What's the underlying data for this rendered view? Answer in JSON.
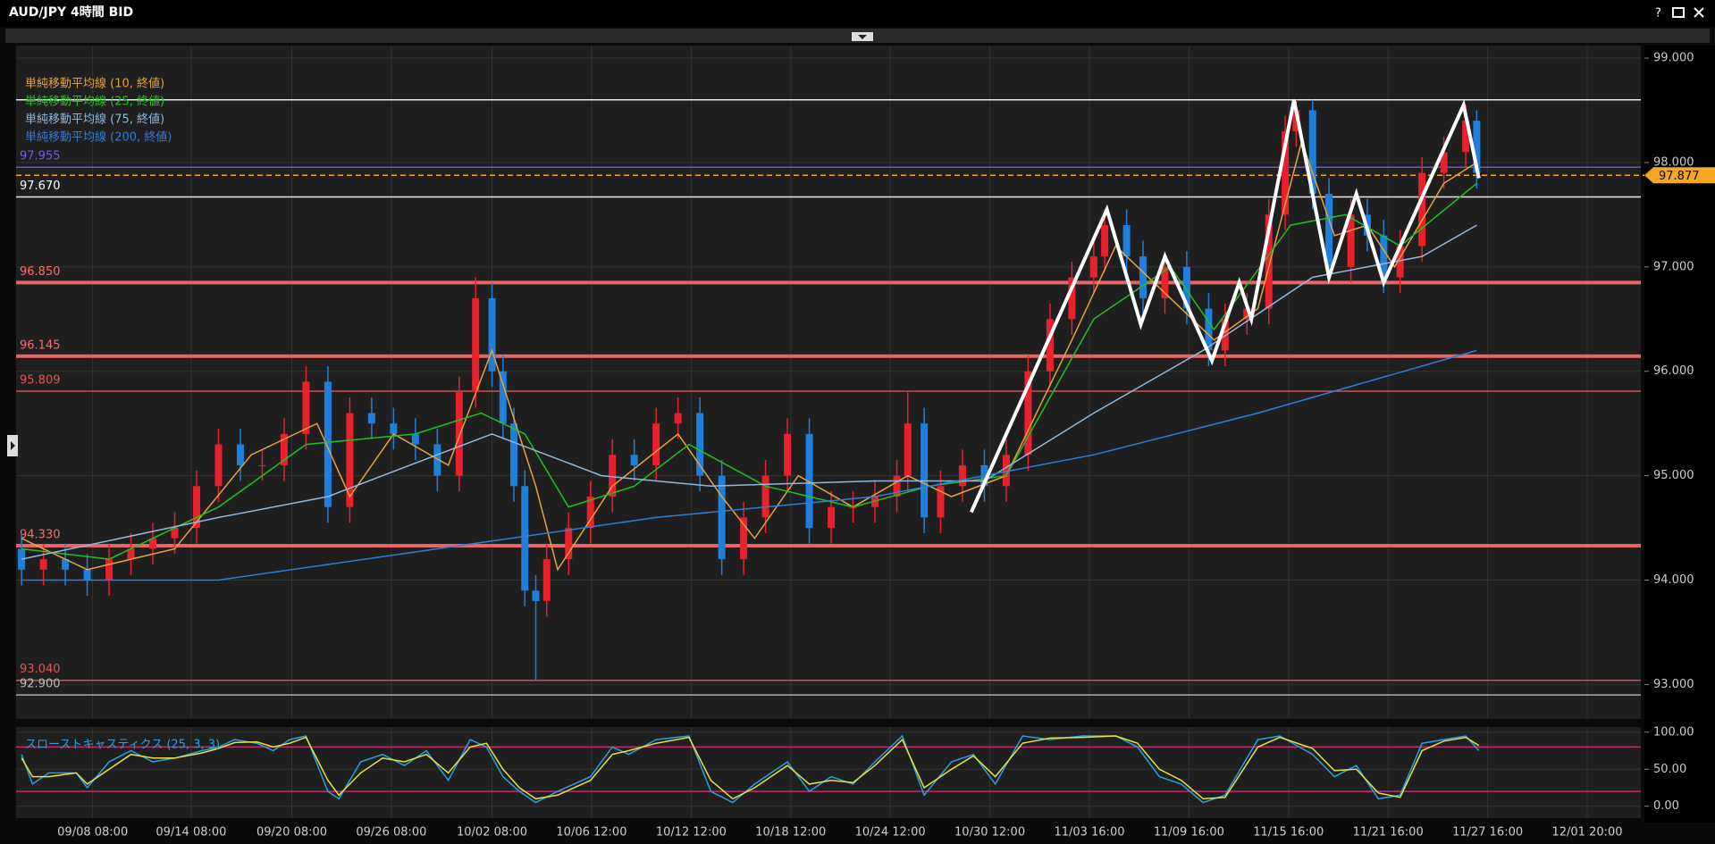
{
  "chart_data": [
    {
      "type": "candlestick",
      "title": "AUD/JPY 4時間 BID",
      "xlim": [
        15,
        1500
      ],
      "xticks": [
        {
          "value": 85,
          "label": "09/08 08:00"
        },
        {
          "value": 175,
          "label": "09/14 08:00"
        },
        {
          "value": 267,
          "label": "09/20 08:00"
        },
        {
          "value": 358,
          "label": "09/26 08:00"
        },
        {
          "value": 450,
          "label": "10/02 08:00"
        },
        {
          "value": 541,
          "label": "10/06 12:00"
        },
        {
          "value": 632,
          "label": "10/12 12:00"
        },
        {
          "value": 723,
          "label": "10/18 12:00"
        },
        {
          "value": 814,
          "label": "10/24 12:00"
        },
        {
          "value": 905,
          "label": "10/30 12:00"
        },
        {
          "value": 996,
          "label": "11/03 16:00"
        },
        {
          "value": 1087,
          "label": "11/09 16:00"
        },
        {
          "value": 1178,
          "label": "11/15 16:00"
        },
        {
          "value": 1269,
          "label": "11/21 16:00"
        },
        {
          "value": 1360,
          "label": "11/27 16:00"
        },
        {
          "value": 1451,
          "label": "12/01 20:00"
        }
      ],
      "ylim": [
        92.67,
        99.12
      ],
      "yticks": [
        {
          "value": 93,
          "label": "93.000"
        },
        {
          "value": 94,
          "label": "94.000"
        },
        {
          "value": 95,
          "label": "95.000"
        },
        {
          "value": 96,
          "label": "96.000"
        },
        {
          "value": 97,
          "label": "97.000"
        },
        {
          "value": 98,
          "label": "98.000"
        },
        {
          "value": 99,
          "label": "99.000"
        }
      ],
      "grid": true,
      "up_color": "#e8212b",
      "down_color": "#1f80dc",
      "x": [
        20,
        40,
        60,
        80,
        100,
        120,
        140,
        160,
        180,
        200,
        220,
        240,
        260,
        280,
        300,
        320,
        340,
        360,
        380,
        400,
        420,
        435,
        450,
        460,
        470,
        480,
        490,
        500,
        520,
        540,
        560,
        580,
        600,
        620,
        640,
        660,
        680,
        700,
        720,
        740,
        760,
        780,
        800,
        820,
        830,
        845,
        860,
        880,
        900,
        920,
        940,
        960,
        980,
        1000,
        1010,
        1030,
        1045,
        1065,
        1085,
        1105,
        1120,
        1140,
        1160,
        1175,
        1185,
        1200,
        1215,
        1235,
        1250,
        1265,
        1280,
        1300,
        1320,
        1340,
        1350
      ],
      "open": [
        94.3,
        94.1,
        94.2,
        94.1,
        94.0,
        94.2,
        94.3,
        94.4,
        94.5,
        94.9,
        95.3,
        95.1,
        95.1,
        95.4,
        95.9,
        94.7,
        95.6,
        95.5,
        95.4,
        95.3,
        95.0,
        95.8,
        96.7,
        96.0,
        95.5,
        94.9,
        93.9,
        93.8,
        94.2,
        94.5,
        94.8,
        95.2,
        95.1,
        95.5,
        95.6,
        95.0,
        94.2,
        94.6,
        95.0,
        95.4,
        94.5,
        94.7,
        94.7,
        94.8,
        95.0,
        95.5,
        94.6,
        94.9,
        95.1,
        94.9,
        95.2,
        96.0,
        96.5,
        96.9,
        97.1,
        97.4,
        97.1,
        96.7,
        97.0,
        96.6,
        96.2,
        96.5,
        96.6,
        97.5,
        98.3,
        98.5,
        97.7,
        97.0,
        97.5,
        97.3,
        96.9,
        97.2,
        97.9,
        98.1,
        98.4
      ],
      "high": [
        94.45,
        94.35,
        94.35,
        94.25,
        94.35,
        94.45,
        94.55,
        94.65,
        95.05,
        95.45,
        95.45,
        95.25,
        95.55,
        96.05,
        96.05,
        95.75,
        95.75,
        95.65,
        95.55,
        95.45,
        95.95,
        96.9,
        96.85,
        96.15,
        95.65,
        95.05,
        94.05,
        94.35,
        94.65,
        94.95,
        95.35,
        95.35,
        95.65,
        95.75,
        95.75,
        95.15,
        94.75,
        95.15,
        95.55,
        95.55,
        94.85,
        94.85,
        94.95,
        95.15,
        95.8,
        95.65,
        95.05,
        95.25,
        95.25,
        95.35,
        96.15,
        96.65,
        97.05,
        97.25,
        97.55,
        97.55,
        97.25,
        97.15,
        97.15,
        96.75,
        96.65,
        96.75,
        97.65,
        98.45,
        98.6,
        98.6,
        97.85,
        97.65,
        97.65,
        97.45,
        97.35,
        98.05,
        98.25,
        98.55,
        98.5
      ],
      "low": [
        93.95,
        93.95,
        93.95,
        93.85,
        93.85,
        94.05,
        94.15,
        94.25,
        94.35,
        94.75,
        94.95,
        94.95,
        94.95,
        95.25,
        94.55,
        94.55,
        95.35,
        95.25,
        95.15,
        94.85,
        94.85,
        95.65,
        95.85,
        95.35,
        94.75,
        93.75,
        93.04,
        93.65,
        94.05,
        94.35,
        94.65,
        94.95,
        94.95,
        95.35,
        94.85,
        94.05,
        94.05,
        94.45,
        94.85,
        94.35,
        94.35,
        94.55,
        94.55,
        94.65,
        94.85,
        94.45,
        94.45,
        94.75,
        94.75,
        94.75,
        95.05,
        95.85,
        96.35,
        96.75,
        96.95,
        96.95,
        96.55,
        96.55,
        96.45,
        96.05,
        96.05,
        96.35,
        96.45,
        97.35,
        98.15,
        97.55,
        96.85,
        96.85,
        97.15,
        96.75,
        96.75,
        97.05,
        97.75,
        97.95,
        97.75
      ],
      "close": [
        94.1,
        94.2,
        94.1,
        94.0,
        94.2,
        94.3,
        94.4,
        94.5,
        94.9,
        95.3,
        95.1,
        95.1,
        95.4,
        95.9,
        94.7,
        95.6,
        95.5,
        95.4,
        95.3,
        95.0,
        95.8,
        96.7,
        96.0,
        95.5,
        94.9,
        93.9,
        93.8,
        94.2,
        94.5,
        94.8,
        95.2,
        95.1,
        95.5,
        95.6,
        95.0,
        94.2,
        94.6,
        95.0,
        95.4,
        94.5,
        94.7,
        94.7,
        94.8,
        95.0,
        95.5,
        94.6,
        94.9,
        95.1,
        94.9,
        95.2,
        96.0,
        96.5,
        96.9,
        97.1,
        97.4,
        97.1,
        96.7,
        97.0,
        96.6,
        96.2,
        96.5,
        96.6,
        97.5,
        98.3,
        98.5,
        97.7,
        97.0,
        97.5,
        97.3,
        96.9,
        97.2,
        97.9,
        98.1,
        98.4,
        97.9
      ],
      "series": [
        {
          "name": "単純移動平均線 (10, 終値)",
          "color": "#e6a23c",
          "x": [
            20,
            80,
            160,
            230,
            290,
            320,
            360,
            410,
            450,
            490,
            510,
            560,
            620,
            660,
            690,
            730,
            780,
            830,
            870,
            920,
            980,
            1020,
            1060,
            1110,
            1150,
            1190,
            1220,
            1250,
            1275,
            1320,
            1350
          ],
          "values": [
            94.4,
            94.1,
            94.3,
            95.2,
            95.5,
            94.8,
            95.4,
            95.1,
            96.2,
            94.9,
            94.1,
            94.9,
            95.4,
            94.8,
            94.4,
            95.0,
            94.7,
            95.0,
            94.8,
            95.0,
            96.3,
            97.2,
            96.8,
            96.3,
            96.6,
            98.2,
            97.3,
            97.4,
            97.0,
            97.8,
            98.0
          ]
        },
        {
          "name": "単純移動平均線 (25, 終値)",
          "color": "#22c022",
          "x": [
            20,
            100,
            200,
            280,
            380,
            440,
            480,
            520,
            580,
            630,
            700,
            780,
            850,
            920,
            1000,
            1070,
            1110,
            1180,
            1230,
            1280,
            1350
          ],
          "values": [
            94.3,
            94.2,
            94.7,
            95.3,
            95.4,
            95.6,
            95.4,
            94.7,
            94.9,
            95.3,
            94.9,
            94.7,
            94.9,
            95.0,
            96.5,
            97.0,
            96.4,
            97.4,
            97.5,
            97.2,
            97.8
          ]
        },
        {
          "name": "単純移動平均線 (75, 終値)",
          "color": "#8fb8dc",
          "x": [
            20,
            200,
            300,
            400,
            450,
            550,
            650,
            800,
            900,
            1000,
            1100,
            1200,
            1300,
            1350
          ],
          "values": [
            94.2,
            94.6,
            94.8,
            95.2,
            95.4,
            95.0,
            94.9,
            94.95,
            94.95,
            95.6,
            96.2,
            96.9,
            97.1,
            97.4
          ]
        },
        {
          "name": "単純移動平均線 (200, 終値)",
          "color": "#2f7ed8",
          "x": [
            20,
            200,
            400,
            600,
            800,
            1000,
            1150,
            1350
          ],
          "values": [
            94.0,
            94.0,
            94.3,
            94.6,
            94.8,
            95.2,
            95.6,
            96.2
          ]
        }
      ],
      "levels": [
        {
          "value": 98.6,
          "color": "#ffffff",
          "style": "thin"
        },
        {
          "value": 97.955,
          "color": "#6b63e0",
          "style": "thin"
        },
        {
          "value": 97.67,
          "label": "97.670",
          "color": "#ffffff",
          "style": "thin"
        },
        {
          "value": 96.85,
          "label": "96.850",
          "color": "#ff6b6b",
          "style": "thick"
        },
        {
          "value": 96.145,
          "color": "#ff6b6b",
          "style": "thick"
        },
        {
          "value": 95.809,
          "color": "#e05555",
          "style": "thin"
        },
        {
          "value": 94.33,
          "label": "94.330",
          "color": "#ff6b6b",
          "style": "thick"
        },
        {
          "value": 93.04,
          "label": "93.040",
          "color": "#e05555",
          "style": "thin"
        },
        {
          "value": 92.9,
          "label": "92.900",
          "color": "#bbbbbb",
          "style": "thin"
        }
      ],
      "current": 97.877,
      "current_color": "#f5a623",
      "trendline": {
        "color": "#ffffff",
        "x": [
          888,
          1012,
          1043,
          1065,
          1108,
          1133,
          1144,
          1183,
          1215,
          1240,
          1265,
          1338,
          1352
        ],
        "values": [
          94.65,
          97.55,
          96.45,
          97.1,
          96.1,
          96.85,
          96.5,
          98.6,
          96.9,
          97.7,
          96.85,
          98.55,
          97.85
        ]
      }
    },
    {
      "type": "line",
      "name": "スローストキャスティクス (25, 3, 3)",
      "ylim": [
        -16,
        107
      ],
      "yticks": [
        {
          "value": 100,
          "label": "100.00"
        },
        {
          "value": 50,
          "label": "50.00"
        },
        {
          "value": 0,
          "label": "0.00"
        }
      ],
      "levels": [
        {
          "value": 80,
          "color": "#d0307a",
          "style": "thin"
        },
        {
          "value": 20,
          "color": "#d0307a",
          "style": "thin"
        }
      ],
      "x": [
        20,
        30,
        45,
        70,
        80,
        100,
        120,
        140,
        160,
        185,
        200,
        215,
        235,
        250,
        265,
        280,
        300,
        310,
        330,
        350,
        370,
        390,
        410,
        430,
        445,
        460,
        475,
        490,
        510,
        540,
        560,
        575,
        600,
        630,
        650,
        670,
        690,
        720,
        740,
        760,
        780,
        800,
        825,
        845,
        870,
        890,
        910,
        935,
        960,
        990,
        1020,
        1040,
        1060,
        1080,
        1100,
        1120,
        1150,
        1170,
        1200,
        1220,
        1240,
        1260,
        1280,
        1300,
        1320,
        1340,
        1352
      ],
      "series": [
        {
          "color": "#2aa0e0",
          "values": [
            70,
            30,
            45,
            45,
            25,
            60,
            75,
            60,
            65,
            75,
            80,
            90,
            85,
            75,
            90,
            95,
            20,
            10,
            60,
            70,
            55,
            75,
            35,
            90,
            80,
            40,
            20,
            5,
            20,
            40,
            80,
            70,
            90,
            95,
            20,
            5,
            30,
            60,
            20,
            40,
            30,
            60,
            95,
            15,
            60,
            70,
            30,
            95,
            90,
            95,
            95,
            80,
            40,
            30,
            5,
            15,
            90,
            95,
            70,
            40,
            55,
            10,
            15,
            85,
            90,
            95,
            75
          ]
        },
        {
          "color": "#e8e040",
          "values": [
            65,
            40,
            40,
            45,
            30,
            50,
            70,
            65,
            65,
            72,
            78,
            86,
            87,
            80,
            85,
            93,
            35,
            15,
            45,
            65,
            60,
            70,
            45,
            80,
            85,
            50,
            25,
            10,
            15,
            35,
            70,
            75,
            85,
            93,
            35,
            10,
            25,
            55,
            30,
            35,
            32,
            55,
            90,
            25,
            50,
            68,
            40,
            85,
            92,
            93,
            95,
            85,
            50,
            35,
            10,
            12,
            80,
            93,
            78,
            48,
            50,
            18,
            12,
            75,
            88,
            93,
            82
          ]
        }
      ]
    }
  ]
}
